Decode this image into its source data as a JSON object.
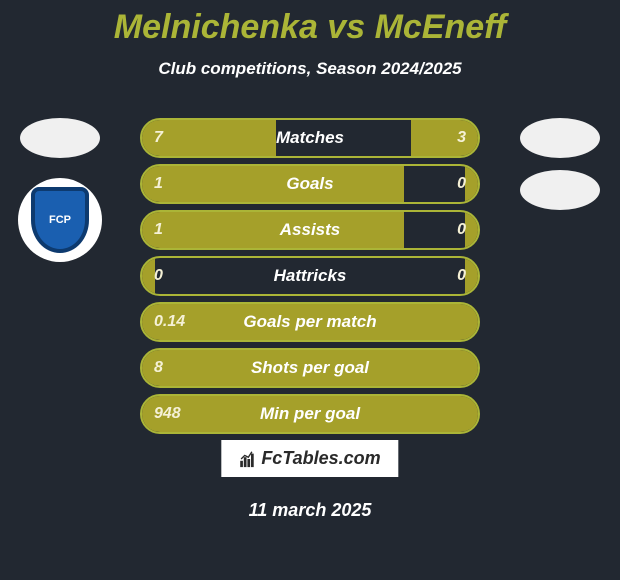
{
  "title": "Melnichenka vs McEneff",
  "subtitle": "Club competitions, Season 2024/2025",
  "colors": {
    "background": "#222831",
    "accent": "#abb537",
    "bar_fill": "#a5a02a",
    "bar_border": "#abb537",
    "text_white": "#ffffff",
    "value_text": "#f5f1d6",
    "logo_bg": "#f0f0f0"
  },
  "bars": [
    {
      "label": "Matches",
      "left": "7",
      "right": "3",
      "left_pct": 40,
      "right_pct": 20
    },
    {
      "label": "Goals",
      "left": "1",
      "right": "0",
      "left_pct": 78,
      "right_pct": 4
    },
    {
      "label": "Assists",
      "left": "1",
      "right": "0",
      "left_pct": 78,
      "right_pct": 4
    },
    {
      "label": "Hattricks",
      "left": "0",
      "right": "0",
      "left_pct": 4,
      "right_pct": 4
    },
    {
      "label": "Goals per match",
      "left": "0.14",
      "right": "",
      "left_pct": 100,
      "right_pct": 0
    },
    {
      "label": "Shots per goal",
      "left": "8",
      "right": "",
      "left_pct": 100,
      "right_pct": 0
    },
    {
      "label": "Min per goal",
      "left": "948",
      "right": "",
      "left_pct": 100,
      "right_pct": 0
    }
  ],
  "brand": "FcTables.com",
  "date": "11 march 2025",
  "porto_text": "FCP"
}
